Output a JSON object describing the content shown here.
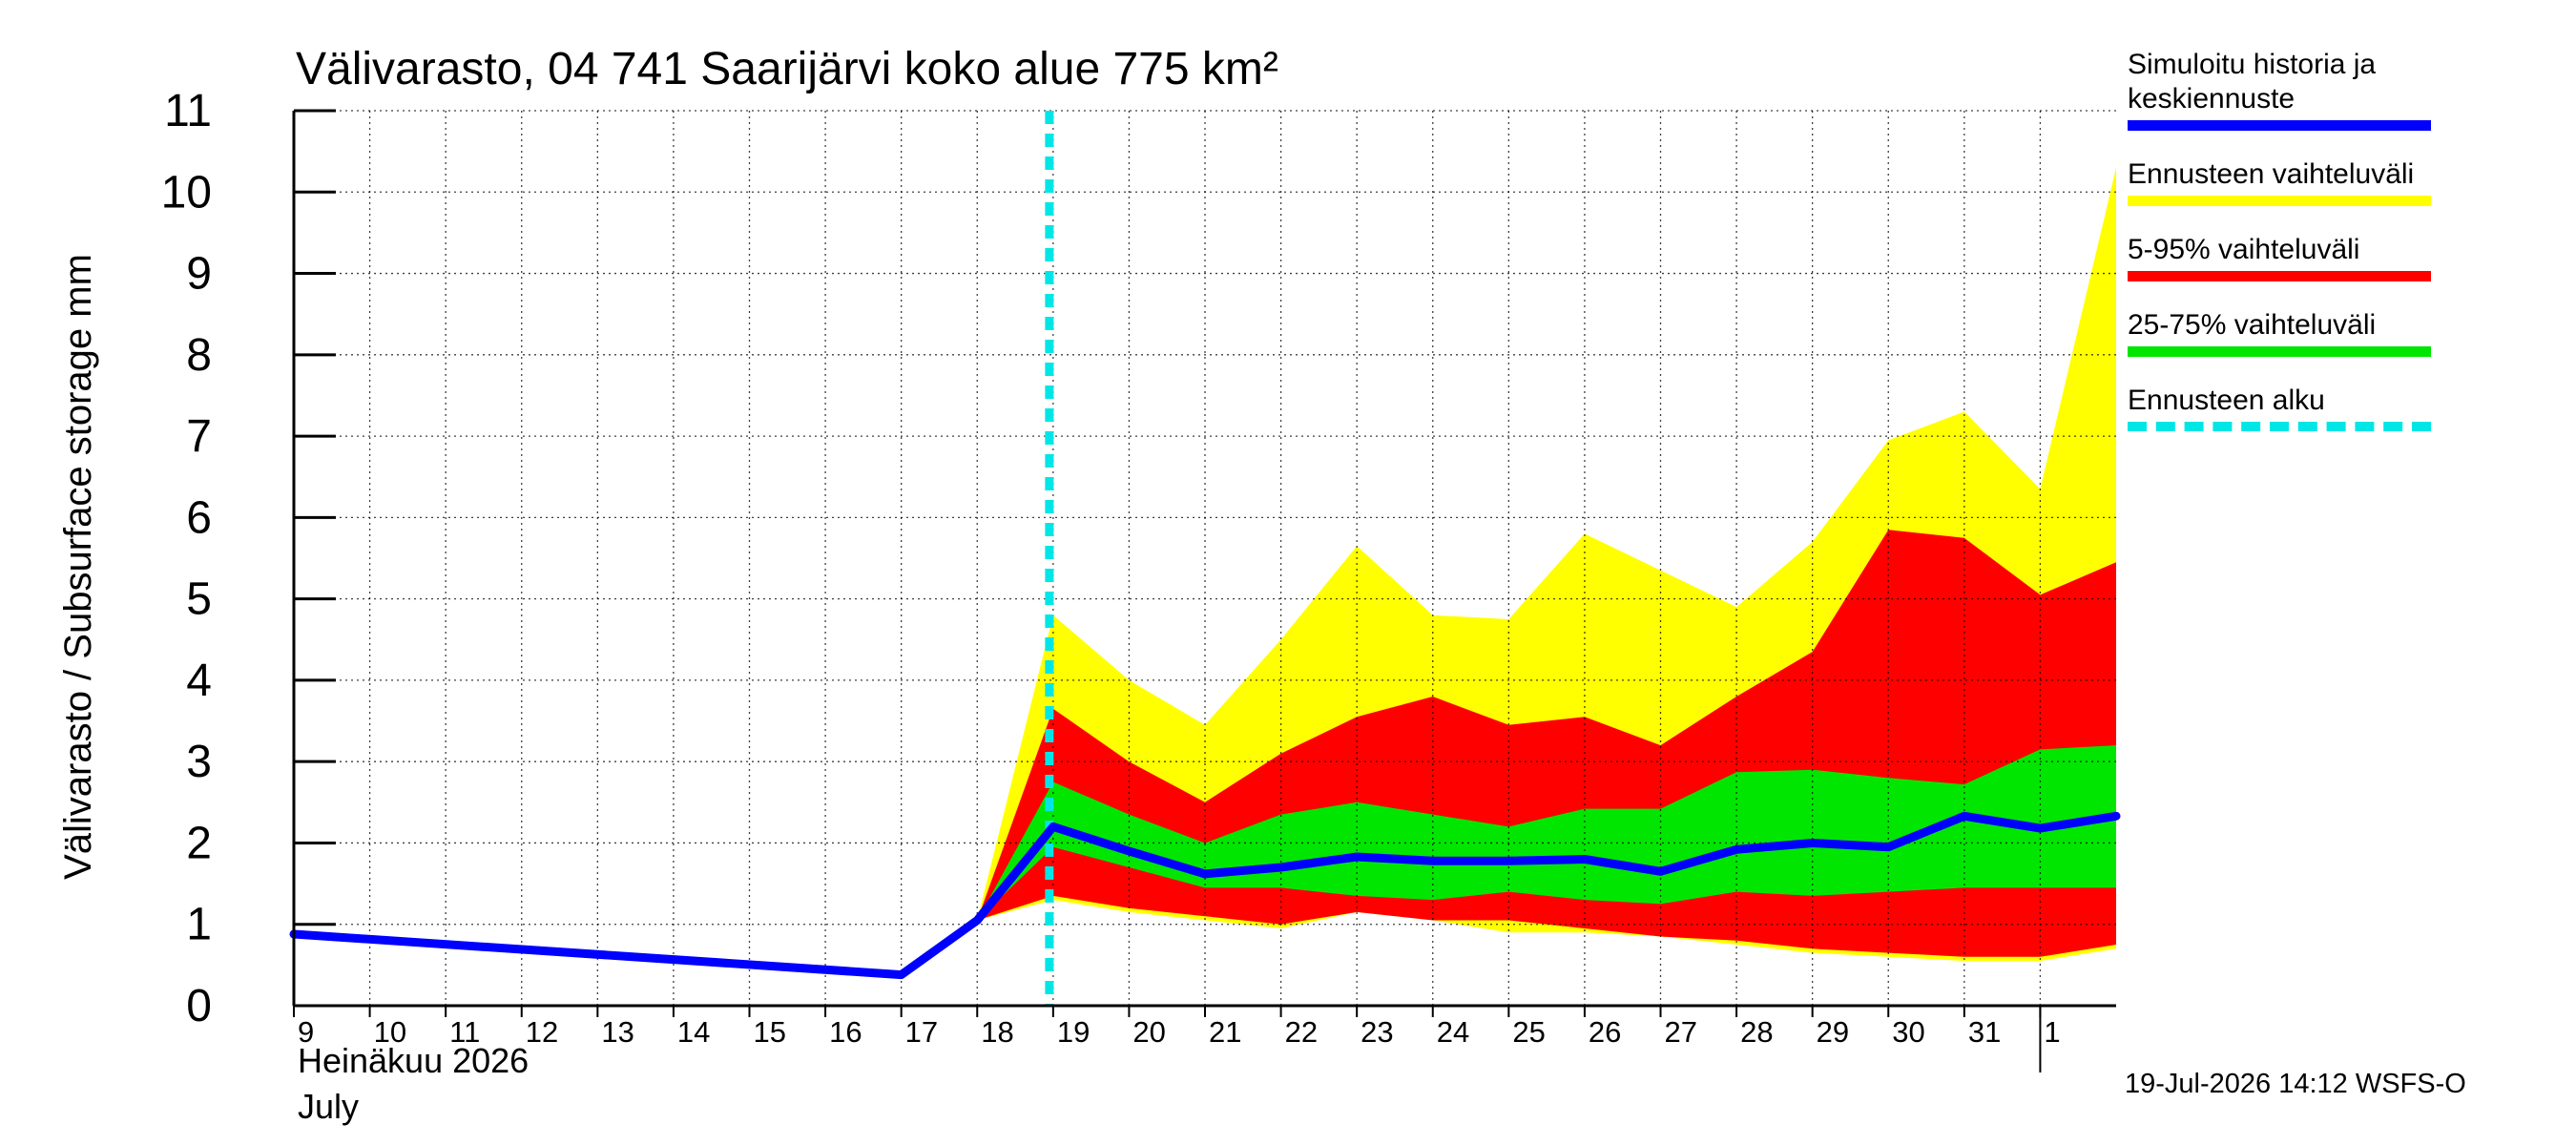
{
  "chart_data": {
    "type": "area",
    "title": "Välivarasto, 04 741 Saarijärvi koko alue 775 km²",
    "ylabel": "Välivarasto / Subsurface storage  mm",
    "xlabel_month_fi": "Heinäkuu  2026",
    "xlabel_month_en": "July",
    "ylim": [
      0,
      11
    ],
    "yticks": [
      "0",
      "1",
      "2",
      "3",
      "4",
      "5",
      "6",
      "7",
      "8",
      "9",
      "10",
      "11"
    ],
    "xlim": [
      0,
      24
    ],
    "xticks": [
      "9",
      "10",
      "11",
      "12",
      "13",
      "14",
      "15",
      "16",
      "17",
      "18",
      "19",
      "20",
      "21",
      "22",
      "23",
      "24",
      "25",
      "26",
      "27",
      "28",
      "29",
      "30",
      "31",
      "1"
    ],
    "forecast_start_x": 9.95,
    "grid": true,
    "series": [
      {
        "name": "Simuloitu historia ja keskiennuste",
        "color": "#0000ff",
        "x": [
          0,
          8,
          9,
          10,
          11,
          12,
          13,
          14,
          15,
          16,
          17,
          18,
          19,
          20,
          21,
          22,
          23,
          24
        ],
        "values": [
          0.88,
          0.38,
          1.05,
          2.2,
          1.9,
          1.62,
          1.7,
          1.83,
          1.78,
          1.78,
          1.8,
          1.65,
          1.92,
          2.0,
          1.95,
          2.33,
          2.18,
          2.33
        ]
      }
    ],
    "bands": [
      {
        "name": "Ennusteen vaihteluväli",
        "color": "#ffff00",
        "x": [
          9,
          10,
          11,
          12,
          13,
          14,
          15,
          16,
          17,
          18,
          19,
          20,
          21,
          22,
          23,
          24
        ],
        "low": [
          1.05,
          1.3,
          1.15,
          1.05,
          0.95,
          1.15,
          1.05,
          0.9,
          0.9,
          0.85,
          0.75,
          0.65,
          0.6,
          0.55,
          0.55,
          0.7
        ],
        "high": [
          1.05,
          4.8,
          4.0,
          3.45,
          4.5,
          5.65,
          4.8,
          4.75,
          5.8,
          5.35,
          4.9,
          5.7,
          6.95,
          7.3,
          6.35,
          10.3
        ]
      },
      {
        "name": "5-95% vaihteluväli",
        "color": "#ff0000",
        "x": [
          9,
          10,
          11,
          12,
          13,
          14,
          15,
          16,
          17,
          18,
          19,
          20,
          21,
          22,
          23,
          24
        ],
        "low": [
          1.05,
          1.35,
          1.2,
          1.1,
          1.0,
          1.15,
          1.05,
          1.05,
          0.95,
          0.85,
          0.8,
          0.7,
          0.65,
          0.6,
          0.6,
          0.75
        ],
        "high": [
          1.05,
          3.65,
          3.0,
          2.5,
          3.1,
          3.55,
          3.8,
          3.45,
          3.55,
          3.2,
          3.8,
          4.35,
          5.85,
          5.75,
          5.05,
          5.45
        ]
      },
      {
        "name": "25-75% vaihteluväli",
        "color": "#00e600",
        "x": [
          9,
          10,
          11,
          12,
          13,
          14,
          15,
          16,
          17,
          18,
          19,
          20,
          21,
          22,
          23,
          24
        ],
        "low": [
          1.05,
          1.95,
          1.7,
          1.45,
          1.45,
          1.35,
          1.3,
          1.4,
          1.3,
          1.25,
          1.4,
          1.35,
          1.4,
          1.45,
          1.45,
          1.45
        ],
        "high": [
          1.05,
          2.75,
          2.35,
          2.0,
          2.35,
          2.5,
          2.35,
          2.2,
          2.42,
          2.42,
          2.87,
          2.9,
          2.8,
          2.72,
          3.15,
          3.2
        ]
      }
    ]
  },
  "legend": {
    "items": [
      {
        "label": "Simuloitu historia ja\nkeskiennuste",
        "color": "#0000ff",
        "style": "solid"
      },
      {
        "label": "Ennusteen vaihteluväli",
        "color": "#ffff00",
        "style": "solid"
      },
      {
        "label": "5-95% vaihteluväli",
        "color": "#ff0000",
        "style": "solid"
      },
      {
        "label": "25-75% vaihteluväli",
        "color": "#00e600",
        "style": "solid"
      },
      {
        "label": "Ennusteen alku",
        "color": "#00e6e6",
        "style": "dashed"
      }
    ]
  },
  "footer": "19-Jul-2026 14:12 WSFS-O"
}
